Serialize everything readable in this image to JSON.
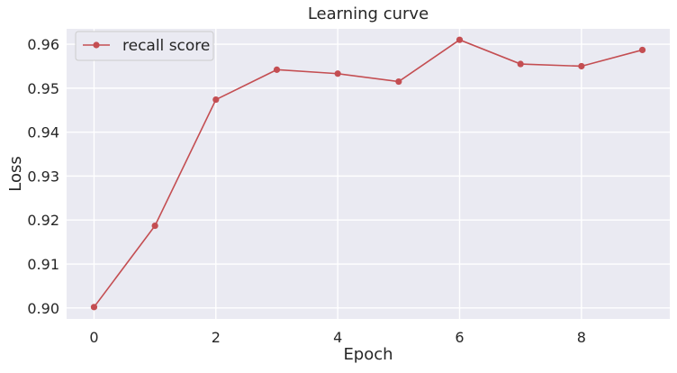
{
  "chart_data": {
    "type": "line",
    "title": "Learning curve",
    "xlabel": "Epoch",
    "ylabel": "Loss",
    "x": [
      0,
      1,
      2,
      3,
      4,
      5,
      6,
      7,
      8,
      9
    ],
    "xlim": [
      -0.45,
      9.45
    ],
    "ylim": [
      0.8975,
      0.9635
    ],
    "xticks": [
      0,
      2,
      4,
      6,
      8
    ],
    "xtick_labels": [
      "0",
      "2",
      "4",
      "6",
      "8"
    ],
    "yticks": [
      0.9,
      0.91,
      0.92,
      0.93,
      0.94,
      0.95,
      0.96
    ],
    "ytick_labels": [
      "0.90",
      "0.91",
      "0.92",
      "0.93",
      "0.94",
      "0.95",
      "0.96"
    ],
    "grid": true,
    "legend_position": "top-left",
    "series": [
      {
        "name": "recall score",
        "color": "#c44e52",
        "marker": "circle",
        "values": [
          0.9002,
          0.9187,
          0.9474,
          0.9542,
          0.9533,
          0.9515,
          0.961,
          0.9555,
          0.955,
          0.9587
        ]
      }
    ]
  }
}
